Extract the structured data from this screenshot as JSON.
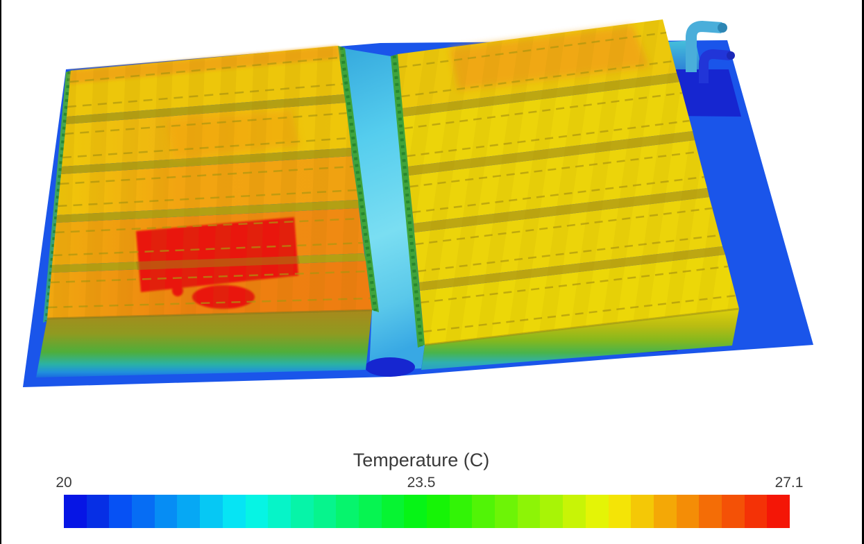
{
  "scene": {
    "description": "CFD surface-temperature contour plot of a battery pack: two groups of five battery modules mounted on a liquid cold plate, with a coolant channel between the groups and two elbow pipes (inlet/outlet) at the top right",
    "left_group_rows": 5,
    "right_group_rows": 5,
    "hotspot_location": "left module group, fourth row from back"
  },
  "legend": {
    "title": "Temperature (C)",
    "ticks": [
      "20",
      "23.5",
      "27.1"
    ]
  },
  "chart_data": {
    "type": "heatmap",
    "title": "Temperature (C)",
    "colorbar": {
      "label": "Temperature (C)",
      "units": "C",
      "min": 20,
      "mid_tick": 23.5,
      "max": 27.1,
      "tick_labels": [
        "20",
        "23.5",
        "27.1"
      ],
      "n_bands": 32,
      "colormap": "discrete rainbow, blue (20 C) through cyan/green/yellow/orange to red (27.1 C)",
      "orientation": "horizontal",
      "legend_position": "bottom"
    },
    "regions": [
      {
        "name": "cold plate surface",
        "approx_temp_c": 20.5
      },
      {
        "name": "coolant channel between module groups",
        "approx_temp_c": 21.5
      },
      {
        "name": "pipe connection zone on plate",
        "approx_temp_c": 20.2
      },
      {
        "name": "left module group rows back-to-front",
        "approx_temp_c": [
          25.0,
          25.3,
          25.8,
          26.4,
          26.1
        ]
      },
      {
        "name": "left group hotspot (row 4)",
        "approx_temp_c": 27.1
      },
      {
        "name": "right module group rows back-to-front",
        "approx_temp_c": [
          25.2,
          24.4,
          24.3,
          24.2,
          24.2
        ]
      },
      {
        "name": "dark blue pipe (inlet)",
        "approx_temp_c": 20.3
      },
      {
        "name": "light blue pipe (outlet)",
        "approx_temp_c": 21.5
      }
    ]
  },
  "colors": {
    "background": "#ffffff",
    "frame_border": "#000000",
    "text": "#3a3a3a",
    "plate_blue": "#1a55ea",
    "plate_navy": "#1626d0",
    "channel_cyan": "#55cdee",
    "module_yellow": "#ecd40a",
    "module_gold": "#edc60b",
    "module_orange": "#f08c11",
    "hotspot_red": "#e91408",
    "separator_olive": "#b3a014",
    "side_face_green": "#3fa43c",
    "pipe_light_blue": "#4aaeda",
    "pipe_dark_blue": "#2135d8"
  }
}
